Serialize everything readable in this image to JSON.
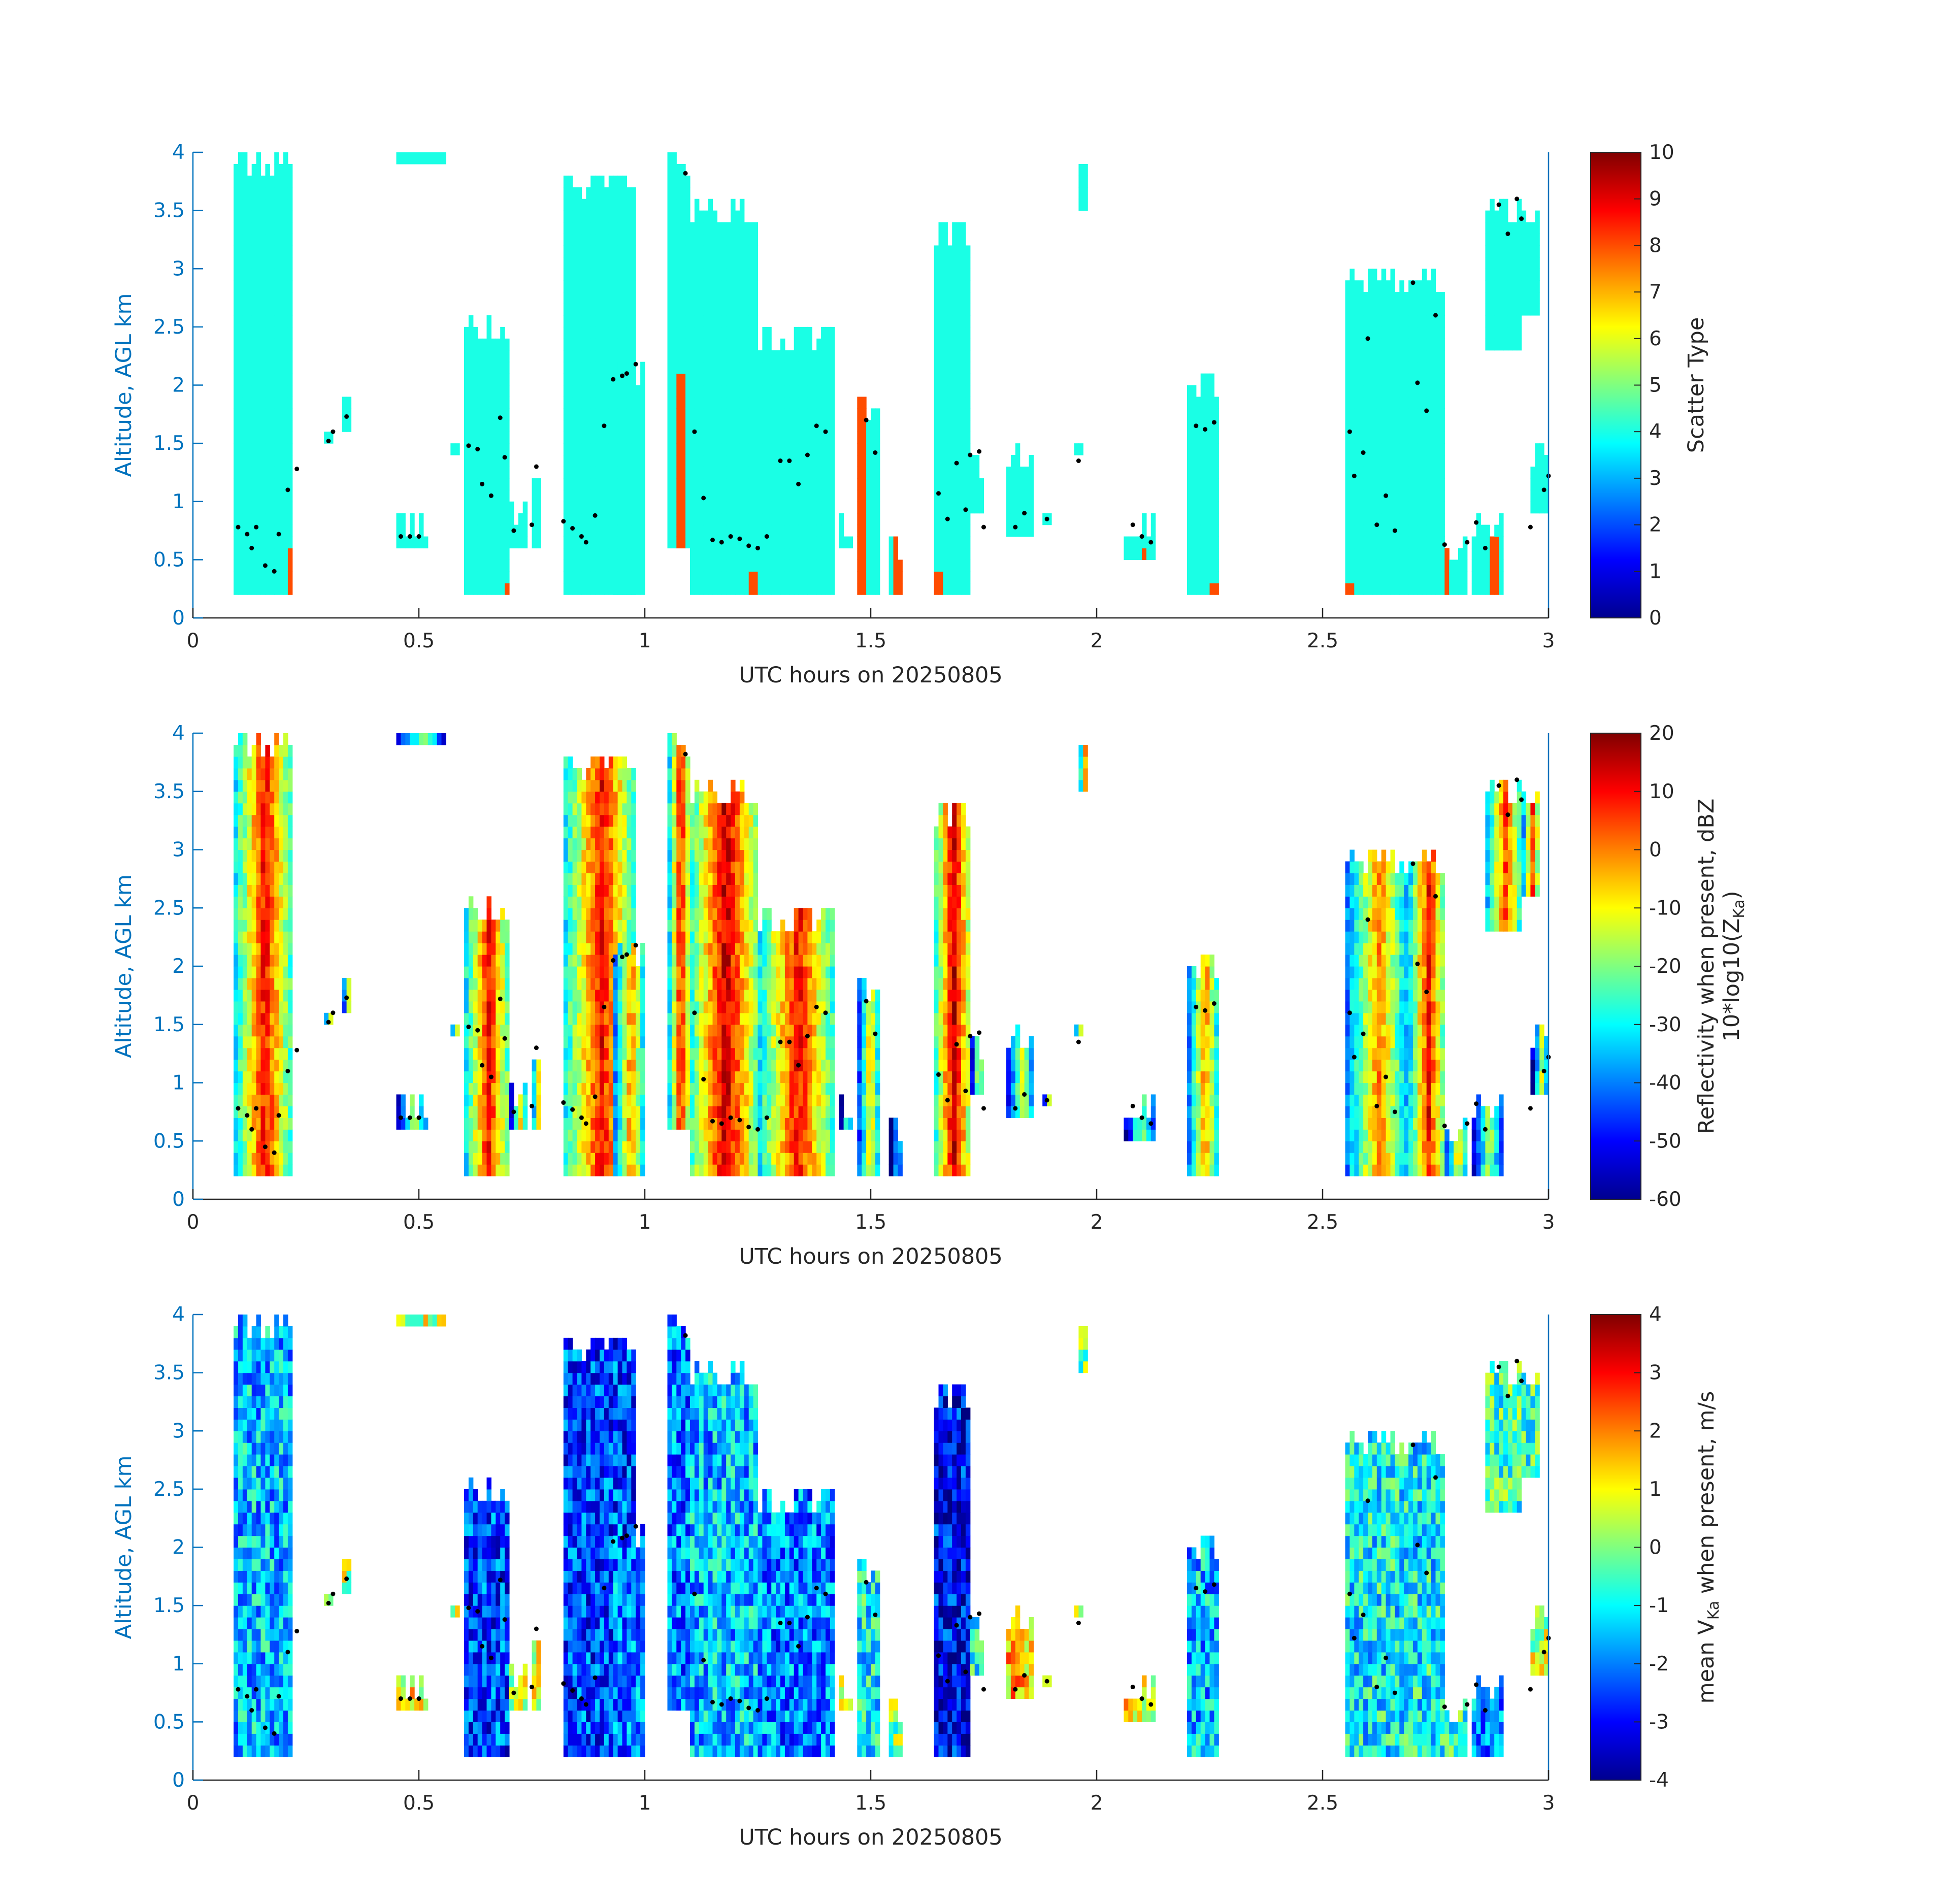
{
  "figure": {
    "background": "#ffffff",
    "axis_color": "#0072BD",
    "tick_color_x": "#262626"
  },
  "chart_data": [
    {
      "type": "heatmap",
      "title": "",
      "xlabel": "UTC hours on 20250805",
      "ylabel": "Altitude, AGL km",
      "xlim": [
        0,
        3
      ],
      "ylim": [
        0,
        4
      ],
      "x_ticks": [
        "0",
        "0.5",
        "1",
        "1.5",
        "2",
        "2.5",
        "3"
      ],
      "y_ticks": [
        "0",
        "0.5",
        "1",
        "1.5",
        "2",
        "2.5",
        "3",
        "3.5",
        "4"
      ],
      "colorbar": {
        "label": "Scatter Type",
        "range": [
          0,
          10
        ],
        "ticks": [
          "0",
          "1",
          "2",
          "3",
          "4",
          "5",
          "6",
          "7",
          "8",
          "9",
          "10"
        ],
        "colormap": "jet"
      },
      "grid": false,
      "variable": "scatter_type"
    },
    {
      "type": "heatmap",
      "title": "",
      "xlabel": "UTC hours on 20250805",
      "ylabel": "Altitude, AGL km",
      "xlim": [
        0,
        3
      ],
      "ylim": [
        0,
        4
      ],
      "x_ticks": [
        "0",
        "0.5",
        "1",
        "1.5",
        "2",
        "2.5",
        "3"
      ],
      "y_ticks": [
        "0",
        "0.5",
        "1",
        "1.5",
        "2",
        "2.5",
        "3",
        "3.5",
        "4"
      ],
      "colorbar": {
        "label_line1": "Reflectivity when present, dBZ",
        "label_line2": "10*log10(Z",
        "label_line2_sub": "Ka",
        "label_line2_end": ")",
        "range": [
          -60,
          20
        ],
        "ticks": [
          "-60",
          "-50",
          "-40",
          "-30",
          "-20",
          "-10",
          "0",
          "10",
          "20"
        ],
        "colormap": "jet"
      },
      "grid": false,
      "variable": "reflectivity_dbz"
    },
    {
      "type": "heatmap",
      "title": "",
      "xlabel": "UTC hours on 20250805",
      "ylabel": "Altitude, AGL km",
      "xlim": [
        0,
        3
      ],
      "ylim": [
        0,
        4
      ],
      "x_ticks": [
        "0",
        "0.5",
        "1",
        "1.5",
        "2",
        "2.5",
        "3"
      ],
      "y_ticks": [
        "0",
        "0.5",
        "1",
        "1.5",
        "2",
        "2.5",
        "3",
        "3.5",
        "4"
      ],
      "colorbar": {
        "label_pre": "mean V",
        "label_sub": "Ka",
        "label_post": " when present, m/s",
        "range": [
          -4,
          4
        ],
        "ticks": [
          "-4",
          "-3",
          "-2",
          "-1",
          "0",
          "1",
          "2",
          "3",
          "4"
        ],
        "colormap": "jet"
      },
      "grid": false,
      "variable": "mean_velocity_ms"
    }
  ],
  "columns": [
    {
      "t0": 0.09,
      "t1": 0.22,
      "bot": 0.2,
      "top": 4.0,
      "st": 4,
      "dbz": -5,
      "v": -1.5,
      "st_mark": [
        0.21,
        0.22,
        0.2,
        0.6
      ]
    },
    {
      "t0": 0.29,
      "t1": 0.31,
      "bot": 1.5,
      "top": 1.65,
      "st": 4,
      "dbz": -30,
      "v": 0.5
    },
    {
      "t0": 0.33,
      "t1": 0.35,
      "bot": 1.65,
      "top": 1.85,
      "st": 4,
      "dbz": -30,
      "v": 0.5
    },
    {
      "t0": 0.45,
      "t1": 0.52,
      "bot": 0.6,
      "top": 0.85,
      "st": 4,
      "dbz": -30,
      "v": 1.0
    },
    {
      "t0": 0.45,
      "t1": 0.56,
      "bot": 3.85,
      "top": 4.0,
      "st": 4,
      "dbz": -30,
      "v": 0.5
    },
    {
      "t0": 0.57,
      "t1": 0.59,
      "bot": 1.45,
      "top": 1.6,
      "st": 4,
      "dbz": -30,
      "v": 0.5
    },
    {
      "t0": 0.6,
      "t1": 0.7,
      "bot": 0.2,
      "top": 2.6,
      "st": 4,
      "dbz": -5,
      "v": -2.5,
      "st_mark": [
        0.69,
        0.7,
        0.2,
        0.25
      ]
    },
    {
      "t0": 0.7,
      "t1": 0.74,
      "bot": 0.6,
      "top": 1.0,
      "st": 4,
      "dbz": -25,
      "v": 0.5
    },
    {
      "t0": 0.75,
      "t1": 0.77,
      "bot": 0.6,
      "top": 1.45,
      "st": 4,
      "dbz": -20,
      "v": 0.8
    },
    {
      "t0": 0.82,
      "t1": 0.98,
      "bot": 0.2,
      "top": 3.75,
      "st": 4,
      "dbz": -5,
      "v": -2.5,
      "st_mark": [
        0.82,
        0.83,
        0.35,
        0.4
      ]
    },
    {
      "t0": 0.93,
      "t1": 1.0,
      "bot": 0.2,
      "top": 2.2,
      "st": 4,
      "dbz": -15,
      "v": -2.0
    },
    {
      "t0": 1.05,
      "t1": 1.1,
      "bot": 0.55,
      "top": 4.0,
      "st": 4,
      "dbz": -5,
      "v": -2.0,
      "st_mark": [
        1.07,
        1.09,
        0.55,
        2.1
      ]
    },
    {
      "t0": 1.1,
      "t1": 1.25,
      "bot": 0.2,
      "top": 3.6,
      "st": 4,
      "dbz": 0,
      "v": -1.5,
      "st_mark": [
        1.23,
        1.25,
        0.2,
        0.35
      ]
    },
    {
      "t0": 1.25,
      "t1": 1.42,
      "bot": 0.2,
      "top": 2.5,
      "st": 4,
      "dbz": -5,
      "v": -2.0
    },
    {
      "t0": 1.43,
      "t1": 1.46,
      "bot": 0.6,
      "top": 0.9,
      "st": 4,
      "dbz": -30,
      "v": 0.5
    },
    {
      "t0": 1.47,
      "t1": 1.52,
      "bot": 0.2,
      "top": 1.85,
      "st": 4,
      "dbz": -20,
      "v": -1.0,
      "st_mark": [
        1.47,
        1.49,
        0.2,
        1.85
      ]
    },
    {
      "t0": 1.54,
      "t1": 1.57,
      "bot": 0.2,
      "top": 0.65,
      "st": 4,
      "dbz": -40,
      "v": 0.0,
      "st_mark": [
        1.55,
        1.57,
        0.2,
        0.65
      ]
    },
    {
      "t0": 1.64,
      "t1": 1.72,
      "bot": 0.2,
      "top": 3.35,
      "st": 4,
      "dbz": 0,
      "v": -3.0,
      "st_mark": [
        1.64,
        1.66,
        0.2,
        0.35
      ]
    },
    {
      "t0": 1.72,
      "t1": 1.75,
      "bot": 0.85,
      "top": 1.45,
      "st": 4,
      "dbz": -25,
      "v": -1.0
    },
    {
      "t0": 1.8,
      "t1": 1.86,
      "bot": 0.65,
      "top": 1.5,
      "st": 4,
      "dbz": -25,
      "v": 1.5,
      "st_mark": [
        1.8,
        1.83,
        0.65,
        0.7
      ]
    },
    {
      "t0": 1.88,
      "t1": 1.9,
      "bot": 0.8,
      "top": 0.9,
      "st": 4,
      "dbz": -30,
      "v": 0.0
    },
    {
      "t0": 1.95,
      "t1": 1.97,
      "bot": 1.35,
      "top": 1.45,
      "st": 4,
      "dbz": -30,
      "v": 0.0
    },
    {
      "t0": 1.96,
      "t1": 1.98,
      "bot": 3.55,
      "top": 4.0,
      "st": 4,
      "dbz": -15,
      "v": 0.0
    },
    {
      "t0": 2.06,
      "t1": 2.13,
      "bot": 0.45,
      "top": 0.95,
      "st": 4,
      "dbz": -30,
      "v": 1.0,
      "st_mark": [
        2.1,
        2.11,
        0.45,
        0.55
      ]
    },
    {
      "t0": 2.2,
      "t1": 2.27,
      "bot": 0.2,
      "top": 2.15,
      "st": 4,
      "dbz": -15,
      "v": -1.5,
      "st_mark": [
        2.25,
        2.27,
        0.2,
        0.3
      ]
    },
    {
      "t0": 2.55,
      "t1": 2.69,
      "bot": 0.2,
      "top": 2.95,
      "st": 4,
      "dbz": -15,
      "v": -1.0,
      "st_mark": [
        2.55,
        2.57,
        0.2,
        0.25
      ]
    },
    {
      "t0": 2.69,
      "t1": 2.77,
      "bot": 0.2,
      "top": 3.05,
      "st": 4,
      "dbz": -5,
      "v": -1.0
    },
    {
      "t0": 2.77,
      "t1": 2.82,
      "bot": 0.2,
      "top": 0.7,
      "st": 4,
      "dbz": -20,
      "v": -0.5,
      "st_mark": [
        2.77,
        2.78,
        0.2,
        0.7
      ]
    },
    {
      "t0": 2.83,
      "t1": 2.9,
      "bot": 0.2,
      "top": 0.9,
      "st": 4,
      "dbz": -30,
      "v": -2.0,
      "st_mark": [
        2.87,
        2.89,
        0.2,
        0.65
      ]
    },
    {
      "t0": 2.86,
      "t1": 2.94,
      "bot": 2.3,
      "top": 3.6,
      "st": 4,
      "dbz": -10,
      "v": -0.5
    },
    {
      "t0": 2.94,
      "t1": 2.98,
      "bot": 2.6,
      "top": 3.55,
      "st": 4,
      "dbz": -10,
      "v": -0.5
    },
    {
      "t0": 2.96,
      "t1": 3.0,
      "bot": 0.9,
      "top": 1.5,
      "st": 4,
      "dbz": -30,
      "v": 0.5,
      "st_mark": [
        2.99,
        3.0,
        0.55,
        0.6
      ]
    }
  ],
  "dots": [
    [
      0.1,
      0.78
    ],
    [
      0.12,
      0.72
    ],
    [
      0.13,
      0.6
    ],
    [
      0.14,
      0.78
    ],
    [
      0.16,
      0.45
    ],
    [
      0.18,
      0.4
    ],
    [
      0.19,
      0.72
    ],
    [
      0.21,
      1.1
    ],
    [
      0.23,
      1.28
    ],
    [
      0.3,
      1.52
    ],
    [
      0.31,
      1.6
    ],
    [
      0.34,
      1.73
    ],
    [
      0.46,
      0.7
    ],
    [
      0.48,
      0.7
    ],
    [
      0.5,
      0.7
    ],
    [
      0.61,
      1.48
    ],
    [
      0.63,
      1.45
    ],
    [
      0.64,
      1.15
    ],
    [
      0.66,
      1.05
    ],
    [
      0.68,
      1.72
    ],
    [
      0.69,
      1.38
    ],
    [
      0.71,
      0.75
    ],
    [
      0.76,
      1.3
    ],
    [
      0.75,
      0.8
    ],
    [
      0.82,
      0.83
    ],
    [
      0.84,
      0.77
    ],
    [
      0.86,
      0.7
    ],
    [
      0.87,
      0.65
    ],
    [
      0.89,
      0.88
    ],
    [
      0.91,
      1.65
    ],
    [
      0.93,
      2.05
    ],
    [
      0.95,
      2.08
    ],
    [
      0.96,
      2.1
    ],
    [
      0.98,
      2.18
    ],
    [
      1.09,
      3.82
    ],
    [
      1.11,
      1.6
    ],
    [
      1.13,
      1.03
    ],
    [
      1.15,
      0.67
    ],
    [
      1.17,
      0.65
    ],
    [
      1.19,
      0.7
    ],
    [
      1.21,
      0.68
    ],
    [
      1.23,
      0.62
    ],
    [
      1.25,
      0.6
    ],
    [
      1.27,
      0.7
    ],
    [
      1.3,
      1.35
    ],
    [
      1.32,
      1.35
    ],
    [
      1.34,
      1.15
    ],
    [
      1.36,
      1.4
    ],
    [
      1.38,
      1.65
    ],
    [
      1.4,
      1.6
    ],
    [
      1.49,
      1.7
    ],
    [
      1.51,
      1.42
    ],
    [
      1.65,
      1.07
    ],
    [
      1.67,
      0.85
    ],
    [
      1.69,
      1.33
    ],
    [
      1.71,
      0.93
    ],
    [
      1.72,
      1.4
    ],
    [
      1.74,
      1.43
    ],
    [
      1.75,
      0.78
    ],
    [
      1.82,
      0.78
    ],
    [
      1.84,
      0.9
    ],
    [
      1.89,
      0.85
    ],
    [
      1.96,
      1.35
    ],
    [
      2.08,
      0.8
    ],
    [
      2.1,
      0.7
    ],
    [
      2.12,
      0.65
    ],
    [
      2.22,
      1.65
    ],
    [
      2.24,
      1.62
    ],
    [
      2.26,
      1.68
    ],
    [
      2.56,
      1.6
    ],
    [
      2.57,
      1.22
    ],
    [
      2.59,
      1.42
    ],
    [
      2.6,
      2.4
    ],
    [
      2.62,
      0.8
    ],
    [
      2.64,
      1.05
    ],
    [
      2.66,
      0.75
    ],
    [
      2.7,
      2.88
    ],
    [
      2.71,
      2.02
    ],
    [
      2.73,
      1.78
    ],
    [
      2.75,
      2.6
    ],
    [
      2.77,
      0.63
    ],
    [
      2.82,
      0.65
    ],
    [
      2.84,
      0.82
    ],
    [
      2.86,
      0.6
    ],
    [
      2.89,
      3.55
    ],
    [
      2.91,
      3.3
    ],
    [
      2.93,
      3.6
    ],
    [
      2.94,
      3.43
    ],
    [
      2.96,
      0.78
    ],
    [
      2.99,
      1.1
    ],
    [
      3.0,
      1.22
    ]
  ]
}
